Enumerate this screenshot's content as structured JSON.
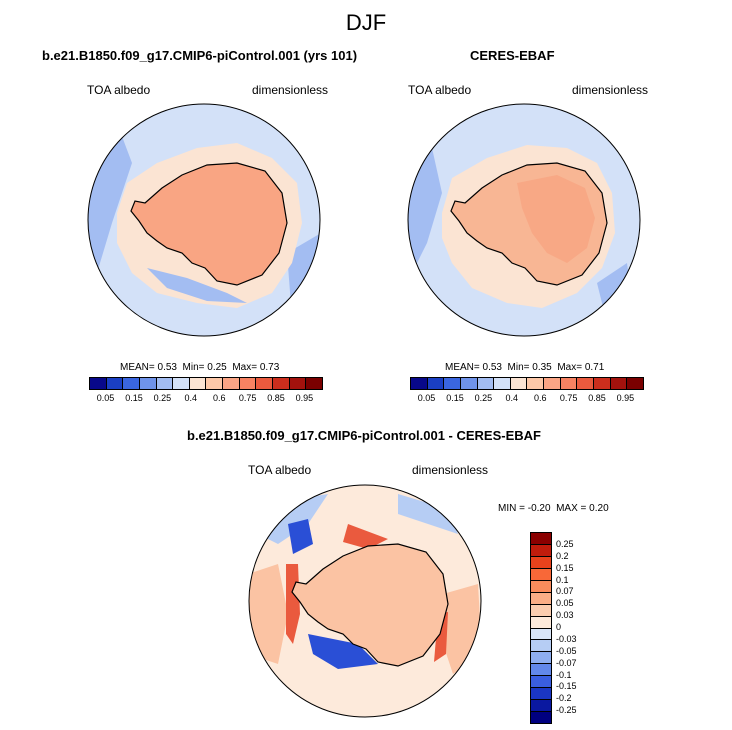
{
  "figure": {
    "title": "DJF"
  },
  "panels": {
    "model": {
      "title": "b.e21.B1850.f09_g17.CMIP6-piControl.001 (yrs 101)",
      "variable": "TOA albedo",
      "units": "dimensionless",
      "mean_label": "MEAN=",
      "mean": "0.53",
      "min_label": "Min=",
      "min": "0.25",
      "max_label": "Max=",
      "max": "0.73"
    },
    "obs": {
      "title": "CERES-EBAF",
      "variable": "TOA albedo",
      "units": "dimensionless",
      "mean_label": "MEAN=",
      "mean": "0.53",
      "min_label": "Min=",
      "min": "0.35",
      "max_label": "Max=",
      "max": "0.71"
    },
    "diff": {
      "title": "b.e21.B1850.f09_g17.CMIP6-piControl.001 - CERES-EBAF",
      "variable": "TOA albedo",
      "units": "dimensionless",
      "min_label": "MIN =",
      "min": "-0.20",
      "max_label": "MAX =",
      "max": "0.20"
    }
  },
  "colorbar_abs": {
    "ticks": [
      "0.05",
      "0.15",
      "0.25",
      "0.4",
      "0.6",
      "0.75",
      "0.85",
      "0.95"
    ],
    "colors": [
      "#08088a",
      "#1a3fc4",
      "#3a66e0",
      "#6f93ea",
      "#a3bdf2",
      "#d3e1f8",
      "#fbe4d3",
      "#fdc8a8",
      "#fba585",
      "#f78262",
      "#ea5a3e",
      "#cc2e1d",
      "#a3120d",
      "#7a0000"
    ]
  },
  "colorbar_diff": {
    "ticks": [
      "0.25",
      "0.2",
      "0.15",
      "0.1",
      "0.07",
      "0.05",
      "0.03",
      "0",
      "-0.03",
      "-0.05",
      "-0.07",
      "-0.1",
      "-0.15",
      "-0.2",
      "-0.25"
    ],
    "colors": [
      "#8a0000",
      "#c01c0c",
      "#e8421c",
      "#f86838",
      "#fa8c5c",
      "#fbae86",
      "#fbcdaf",
      "#fdeadb",
      "#d9e5f8",
      "#b6cdf4",
      "#8eaef0",
      "#6288ea",
      "#3a5ee0",
      "#1a36c4",
      "#0a18a0",
      "#000080"
    ]
  },
  "map_colors": {
    "ocean_abs": "#d3e1f8",
    "ocean_abs_dark": "#a3bdf2",
    "ice_abs": "#fbe4d3",
    "land_model": "#f9a583",
    "land_obs": "#f8b694",
    "land_obs_inner": "#f8a885",
    "diff_bg": "#fdeadb",
    "diff_pos": "#fbc3a3",
    "diff_pos_strong": "#ea5a3e",
    "diff_neg": "#b6cdf4",
    "diff_neg_strong": "#2a4fd6"
  }
}
